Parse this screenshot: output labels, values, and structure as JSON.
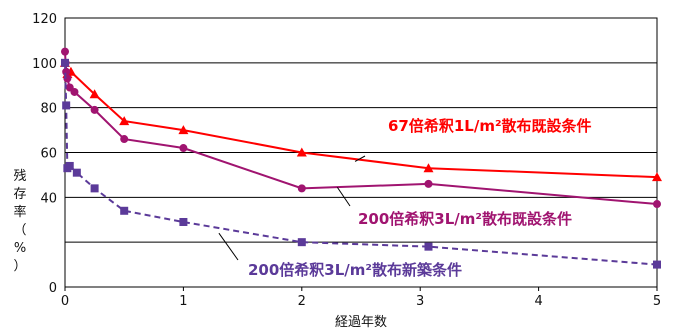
{
  "chart_data": {
    "type": "line",
    "title": "",
    "xlabel": "経過年数",
    "ylabel": "残存率（%）",
    "xlim": [
      0,
      5
    ],
    "ylim": [
      0,
      120
    ],
    "x_ticks": [
      0,
      1,
      2,
      3,
      4,
      5
    ],
    "y_ticks": [
      0,
      40,
      60,
      80,
      100,
      120
    ],
    "grid": "horizontal",
    "legend": "annotations",
    "series": [
      {
        "name": "67倍希釈1L/m²散布既設条件",
        "color": "#ff0000",
        "marker": "triangle",
        "dash": "solid",
        "x": [
          0.0,
          0.02,
          0.05,
          0.25,
          0.5,
          1.0,
          2.0,
          3.07,
          5.0
        ],
        "y": [
          100,
          95,
          96,
          86,
          74,
          70,
          60,
          53,
          49
        ]
      },
      {
        "name": "200倍希釈3L/m²散布既設条件",
        "color": "#a01470",
        "marker": "circle",
        "dash": "solid",
        "x": [
          0.0,
          0.005,
          0.01,
          0.02,
          0.04,
          0.08,
          0.25,
          0.5,
          1.0,
          2.0,
          3.07,
          5.0
        ],
        "y": [
          105,
          100,
          96,
          93,
          89,
          87,
          79,
          66,
          62,
          44,
          46,
          37
        ]
      },
      {
        "name": "200倍希釈3L/m²散布新築条件",
        "color": "#5b3a99",
        "marker": "square",
        "dash": "dashed",
        "x": [
          0.0,
          0.01,
          0.02,
          0.04,
          0.1,
          0.25,
          0.5,
          1.0,
          2.0,
          3.07,
          5.0
        ],
        "y": [
          100,
          81,
          53,
          54,
          51,
          44,
          34,
          29,
          20,
          18,
          10
        ]
      }
    ],
    "annotations": [
      {
        "text": "67倍希釈1L/m²散布既設条件",
        "color": "#ff0000",
        "series": 0
      },
      {
        "text": "200倍希釈3L/m²散布既設条件",
        "color": "#a01470",
        "series": 1
      },
      {
        "text": "200倍希釈3L/m²散布新築条件",
        "color": "#5b3a99",
        "series": 2
      }
    ]
  }
}
